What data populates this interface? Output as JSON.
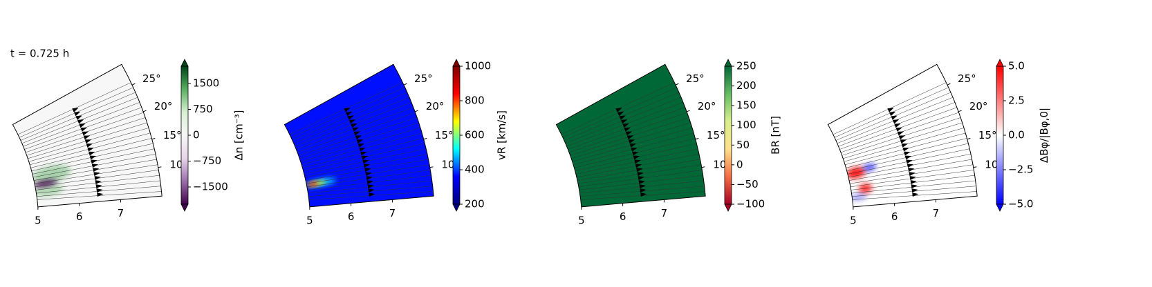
{
  "chart_data": [
    {
      "type": "polar-wedge",
      "annotation": "t = 0.725 h",
      "background_color": "#f7f7f7",
      "rlim": [
        5,
        8
      ],
      "rticks": [
        5,
        6,
        7
      ],
      "thetalim": [
        5,
        29
      ],
      "thetaticks": [
        {
          "value": 10,
          "label": "10°"
        },
        {
          "value": 15,
          "label": "15°"
        },
        {
          "value": 20,
          "label": "20°"
        },
        {
          "value": 25,
          "label": "25°"
        }
      ],
      "colorbar": {
        "label": "Δn [cm⁻³]",
        "lim": [
          -2000,
          2000
        ],
        "extend": "both",
        "colors": [
          "#40004b",
          "#9970ab",
          "#e7d4e8",
          "#f7f7f7",
          "#d9f0d3",
          "#5aae61",
          "#00441b"
        ],
        "ticks": [
          {
            "value": -1500,
            "label": "−1500"
          },
          {
            "value": -750,
            "label": "−750"
          },
          0,
          750,
          1500
        ]
      }
    },
    {
      "type": "polar-wedge",
      "background_color": "#0010ff",
      "rlim": [
        5,
        8
      ],
      "rticks": [
        5,
        6,
        7
      ],
      "thetalim": [
        5,
        29
      ],
      "thetaticks": [
        {
          "value": 10,
          "label": "10°"
        },
        {
          "value": 15,
          "label": "15°"
        },
        {
          "value": 20,
          "label": "20°"
        },
        {
          "value": 25,
          "label": "25°"
        }
      ],
      "colorbar": {
        "label": "vR [km/s]",
        "lim": [
          200,
          1000
        ],
        "extend": "both",
        "colors": [
          "#000080",
          "#0000ff",
          "#00ffff",
          "#ffff00",
          "#ff0000",
          "#800000"
        ],
        "ticks": [
          200,
          400,
          600,
          800,
          1000
        ]
      }
    },
    {
      "type": "polar-wedge",
      "background_color": "#006837",
      "rlim": [
        5,
        8
      ],
      "rticks": [
        5,
        6,
        7
      ],
      "thetalim": [
        5,
        29
      ],
      "thetaticks": [
        {
          "value": 10,
          "label": "10°"
        },
        {
          "value": 15,
          "label": "15°"
        },
        {
          "value": 20,
          "label": "20°"
        },
        {
          "value": 25,
          "label": "25°"
        }
      ],
      "colorbar": {
        "label": "BR [nT]",
        "lim": [
          -100,
          250
        ],
        "extend": "both",
        "colors": [
          "#a50026",
          "#f46d43",
          "#fee08b",
          "#d9ef8b",
          "#66bd63",
          "#006837"
        ],
        "ticks": [
          {
            "value": -100,
            "label": "−100"
          },
          {
            "value": -50,
            "label": "−50"
          },
          0,
          50,
          100,
          150,
          200,
          250
        ]
      }
    },
    {
      "type": "polar-wedge",
      "background_color": "#ffffff",
      "rlim": [
        5,
        8
      ],
      "rticks": [
        5,
        6,
        7
      ],
      "thetalim": [
        5,
        29
      ],
      "thetaticks": [
        {
          "value": 10,
          "label": "10°"
        },
        {
          "value": 15,
          "label": "15°"
        },
        {
          "value": 20,
          "label": "20°"
        },
        {
          "value": 25,
          "label": "25°"
        }
      ],
      "colorbar": {
        "label": "ΔBφ/|Bφ,0|",
        "lim": [
          -5,
          5
        ],
        "extend": "both",
        "colors": [
          "#0000ff",
          "#ffffff",
          "#ff0000"
        ],
        "ticks": [
          {
            "value": -5,
            "label": "−5.0"
          },
          {
            "value": -2.5,
            "label": "−2.5"
          },
          {
            "value": 0,
            "label": "0.0"
          },
          {
            "value": 2.5,
            "label": "2.5"
          },
          {
            "value": 5,
            "label": "5.0"
          }
        ]
      }
    }
  ]
}
